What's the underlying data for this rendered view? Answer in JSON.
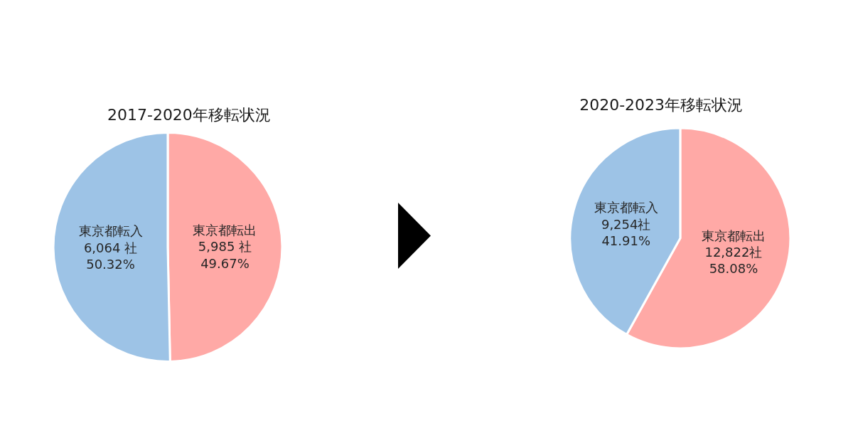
{
  "chart_data": [
    {
      "type": "pie",
      "title": "2017-2020年移転状況",
      "categories": [
        "東京都転出",
        "東京都転入"
      ],
      "values": [
        5985,
        6064
      ],
      "colors": [
        "#ffa9a6",
        "#9dc3e6"
      ],
      "value_labels": [
        "5,985 社\n49.67%",
        "6,064 社\n50.32%"
      ]
    },
    {
      "type": "pie",
      "title": "2020-2023年移転状況",
      "categories": [
        "東京都転出",
        "東京都転入"
      ],
      "values": [
        12822,
        9254
      ],
      "colors": [
        "#ffa9a6",
        "#9dc3e6"
      ],
      "value_labels": [
        "12,822社\n58.08%",
        "9,254社\n41.91%"
      ]
    }
  ]
}
